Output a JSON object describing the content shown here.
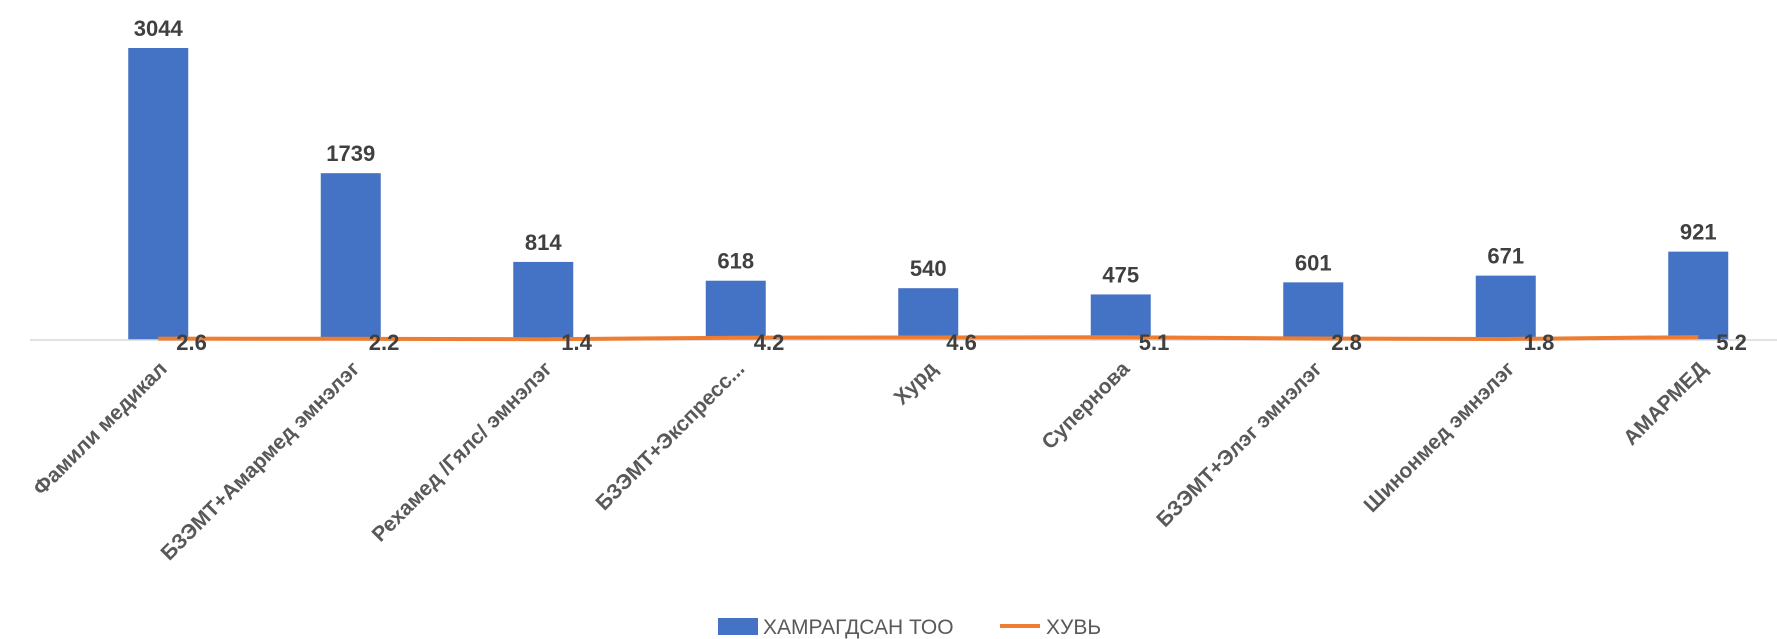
{
  "chart_data": {
    "type": "bar",
    "categories": [
      "Фамили медикал",
      "БЗЭМТ+Амармед эмнэлэг",
      "Рехамед /Гялс/ эмнэлэг",
      "БЗЭМТ+Экспресс...",
      "Хурд",
      "Супернова",
      "БЗЭМТ+Элэг эмнэлэг",
      "Шинонмед эмнэлэг",
      "АМАРМЕД"
    ],
    "series": [
      {
        "name": "ХАМРАГДСАН ТОО",
        "type": "bar",
        "color": "#4472C4",
        "values": [
          3044,
          1739,
          814,
          618,
          540,
          475,
          601,
          671,
          921
        ],
        "labels": [
          "3044",
          "1739",
          "814",
          "618",
          "540",
          "475",
          "601",
          "671",
          "921"
        ]
      },
      {
        "name": "ХУВЬ",
        "type": "line",
        "color": "#ED7D31",
        "values": [
          2.6,
          2.2,
          1.4,
          4.2,
          4.6,
          5.1,
          2.8,
          1.8,
          5.2
        ],
        "labels": [
          "2.6",
          "2.2",
          "1.4",
          "4.2",
          "4.6",
          "5.1",
          "2.8",
          "1.8",
          "5.2"
        ]
      }
    ],
    "title": "",
    "xlabel": "",
    "ylabel": "",
    "ylim": [
      0,
      3044
    ],
    "grid": false,
    "legend": "bottom"
  }
}
